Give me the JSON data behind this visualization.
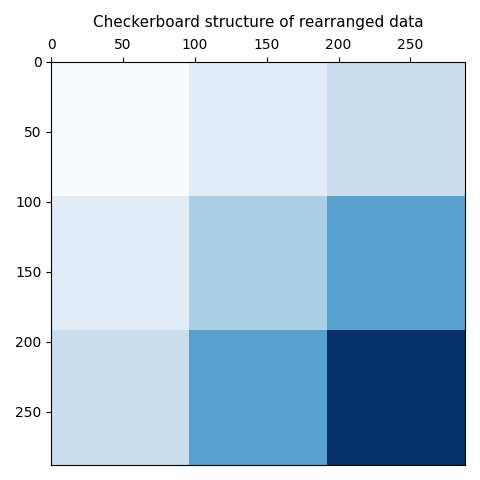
{
  "title": "Checkerboard structure of rearranged data",
  "colormap": "Blues",
  "grid_size": 288,
  "block_size": 96,
  "num_blocks": 3,
  "block_values": [
    [
      0,
      1,
      2
    ],
    [
      1,
      3,
      5
    ],
    [
      2,
      5,
      9
    ]
  ],
  "xtick_locs": [
    0,
    50,
    100,
    150,
    200,
    250
  ],
  "ytick_locs": [
    0,
    50,
    100,
    150,
    200,
    250
  ],
  "vmin": 0,
  "vmax": 9,
  "figsize": [
    4.8,
    4.8
  ],
  "dpi": 100
}
